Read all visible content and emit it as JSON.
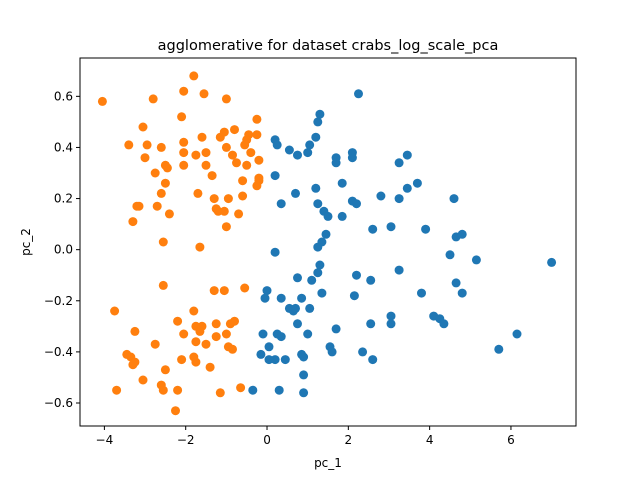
{
  "chart_data": {
    "type": "scatter",
    "title": "agglomerative for dataset crabs_log_scale_pca",
    "xlabel": "pc_1",
    "ylabel": "pc_2",
    "xlim": [
      -4.6,
      7.6
    ],
    "ylim": [
      -0.69,
      0.75
    ],
    "xticks": [
      -4,
      -2,
      0,
      2,
      4,
      6
    ],
    "yticks": [
      -0.6,
      -0.4,
      -0.2,
      0.0,
      0.2,
      0.4,
      0.6
    ],
    "ytick_labels": [
      "−0.6",
      "−0.4",
      "−0.2",
      "0.0",
      "0.2",
      "0.4",
      "0.6"
    ],
    "xtick_labels": [
      "−4",
      "−2",
      "0",
      "2",
      "4",
      "6"
    ],
    "grid": false,
    "colors": {
      "cluster_0": "#1f77b4",
      "cluster_1": "#ff7f0e"
    },
    "series": [
      {
        "color": "#1f77b4",
        "points": [
          [
            2.25,
            0.61
          ],
          [
            1.3,
            0.53
          ],
          [
            1.25,
            0.5
          ],
          [
            1.2,
            0.44
          ],
          [
            0.2,
            0.43
          ],
          [
            0.25,
            0.41
          ],
          [
            0.55,
            0.39
          ],
          [
            0.75,
            0.37
          ],
          [
            1.0,
            0.38
          ],
          [
            1.05,
            0.41
          ],
          [
            1.7,
            0.36
          ],
          [
            1.7,
            0.34
          ],
          [
            2.1,
            0.38
          ],
          [
            2.1,
            0.36
          ],
          [
            3.45,
            0.37
          ],
          [
            3.25,
            0.34
          ],
          [
            0.2,
            0.29
          ],
          [
            1.85,
            0.26
          ],
          [
            3.45,
            0.24
          ],
          [
            3.7,
            0.26
          ],
          [
            0.7,
            0.22
          ],
          [
            1.2,
            0.24
          ],
          [
            2.8,
            0.21
          ],
          [
            3.25,
            0.2
          ],
          [
            0.35,
            0.18
          ],
          [
            1.25,
            0.18
          ],
          [
            2.1,
            0.19
          ],
          [
            2.2,
            0.18
          ],
          [
            4.6,
            0.2
          ],
          [
            1.4,
            0.15
          ],
          [
            1.85,
            0.13
          ],
          [
            1.5,
            0.13
          ],
          [
            3.05,
            0.09
          ],
          [
            2.6,
            0.08
          ],
          [
            1.45,
            0.06
          ],
          [
            3.9,
            0.08
          ],
          [
            4.65,
            0.05
          ],
          [
            4.8,
            0.06
          ],
          [
            1.35,
            0.03
          ],
          [
            1.25,
            0.01
          ],
          [
            0.2,
            -0.01
          ],
          [
            4.5,
            -0.02
          ],
          [
            5.15,
            -0.04
          ],
          [
            7.0,
            -0.05
          ],
          [
            1.3,
            -0.06
          ],
          [
            1.25,
            -0.09
          ],
          [
            2.2,
            -0.1
          ],
          [
            2.55,
            -0.12
          ],
          [
            0.75,
            -0.11
          ],
          [
            1.1,
            -0.12
          ],
          [
            3.25,
            -0.08
          ],
          [
            4.65,
            -0.13
          ],
          [
            4.8,
            -0.17
          ],
          [
            0.0,
            -0.16
          ],
          [
            -0.05,
            -0.19
          ],
          [
            0.35,
            -0.19
          ],
          [
            0.85,
            -0.19
          ],
          [
            1.35,
            -0.17
          ],
          [
            2.15,
            -0.18
          ],
          [
            3.8,
            -0.17
          ],
          [
            0.55,
            -0.23
          ],
          [
            0.65,
            -0.24
          ],
          [
            0.7,
            -0.23
          ],
          [
            1.05,
            -0.23
          ],
          [
            3.05,
            -0.26
          ],
          [
            4.1,
            -0.26
          ],
          [
            4.25,
            -0.27
          ],
          [
            6.15,
            -0.33
          ],
          [
            0.75,
            -0.29
          ],
          [
            2.55,
            -0.29
          ],
          [
            1.7,
            -0.31
          ],
          [
            1.0,
            -0.33
          ],
          [
            3.05,
            -0.29
          ],
          [
            4.35,
            -0.29
          ],
          [
            0.25,
            -0.33
          ],
          [
            0.35,
            -0.34
          ],
          [
            -0.1,
            -0.33
          ],
          [
            0.05,
            -0.38
          ],
          [
            1.55,
            -0.38
          ],
          [
            1.6,
            -0.4
          ],
          [
            2.35,
            -0.4
          ],
          [
            0.85,
            -0.41
          ],
          [
            0.9,
            -0.42
          ],
          [
            0.45,
            -0.43
          ],
          [
            0.2,
            -0.43
          ],
          [
            0.05,
            -0.43
          ],
          [
            -0.15,
            -0.41
          ],
          [
            2.6,
            -0.43
          ],
          [
            5.7,
            -0.39
          ],
          [
            0.9,
            -0.49
          ],
          [
            0.3,
            -0.55
          ],
          [
            0.9,
            -0.56
          ],
          [
            -0.35,
            -0.55
          ]
        ]
      },
      {
        "color": "#ff7f0e",
        "points": [
          [
            -4.05,
            0.58
          ],
          [
            -2.8,
            0.59
          ],
          [
            -1.8,
            0.68
          ],
          [
            -2.05,
            0.62
          ],
          [
            -1.55,
            0.61
          ],
          [
            -1.0,
            0.59
          ],
          [
            -2.1,
            0.52
          ],
          [
            -3.05,
            0.48
          ],
          [
            -1.05,
            0.46
          ],
          [
            -0.8,
            0.47
          ],
          [
            -0.45,
            0.45
          ],
          [
            -0.25,
            0.45
          ],
          [
            -0.5,
            0.43
          ],
          [
            -0.25,
            0.51
          ],
          [
            -3.4,
            0.41
          ],
          [
            -2.95,
            0.41
          ],
          [
            -2.6,
            0.4
          ],
          [
            -2.05,
            0.42
          ],
          [
            -1.6,
            0.44
          ],
          [
            -1.15,
            0.44
          ],
          [
            -1.0,
            0.4
          ],
          [
            -0.55,
            0.41
          ],
          [
            -0.4,
            0.38
          ],
          [
            -3.0,
            0.36
          ],
          [
            -2.5,
            0.33
          ],
          [
            -2.45,
            0.32
          ],
          [
            -2.05,
            0.38
          ],
          [
            -1.75,
            0.37
          ],
          [
            -1.5,
            0.38
          ],
          [
            -0.85,
            0.37
          ],
          [
            -0.75,
            0.34
          ],
          [
            -0.5,
            0.33
          ],
          [
            -0.2,
            0.35
          ],
          [
            -2.05,
            0.33
          ],
          [
            -1.5,
            0.33
          ],
          [
            -2.75,
            0.3
          ],
          [
            -1.35,
            0.29
          ],
          [
            -0.6,
            0.27
          ],
          [
            -0.2,
            0.27
          ],
          [
            -0.2,
            0.28
          ],
          [
            -2.5,
            0.26
          ],
          [
            -0.25,
            0.25
          ],
          [
            -2.6,
            0.22
          ],
          [
            -1.7,
            0.22
          ],
          [
            -1.3,
            0.2
          ],
          [
            -0.95,
            0.2
          ],
          [
            -0.6,
            0.21
          ],
          [
            -3.15,
            0.17
          ],
          [
            -3.2,
            0.17
          ],
          [
            -2.7,
            0.17
          ],
          [
            -1.25,
            0.16
          ],
          [
            -1.2,
            0.15
          ],
          [
            -1.05,
            0.15
          ],
          [
            -2.4,
            0.14
          ],
          [
            -0.7,
            0.14
          ],
          [
            -3.3,
            0.11
          ],
          [
            -1.0,
            0.09
          ],
          [
            -2.55,
            0.03
          ],
          [
            -1.65,
            0.01
          ],
          [
            -2.55,
            -0.14
          ],
          [
            -3.75,
            -0.24
          ],
          [
            -1.8,
            -0.24
          ],
          [
            -1.3,
            -0.16
          ],
          [
            -1.05,
            -0.16
          ],
          [
            -0.55,
            -0.15
          ],
          [
            -2.2,
            -0.28
          ],
          [
            -1.75,
            -0.3
          ],
          [
            -1.6,
            -0.3
          ],
          [
            -1.25,
            -0.29
          ],
          [
            -0.9,
            -0.29
          ],
          [
            -0.8,
            -0.28
          ],
          [
            -1.65,
            -0.32
          ],
          [
            -2.05,
            -0.33
          ],
          [
            -1.25,
            -0.34
          ],
          [
            -1.0,
            -0.33
          ],
          [
            -3.25,
            -0.32
          ],
          [
            -2.75,
            -0.37
          ],
          [
            -1.75,
            -0.36
          ],
          [
            -1.5,
            -0.37
          ],
          [
            -0.95,
            -0.38
          ],
          [
            -0.85,
            -0.39
          ],
          [
            -3.45,
            -0.41
          ],
          [
            -3.35,
            -0.42
          ],
          [
            -3.25,
            -0.44
          ],
          [
            -3.3,
            -0.45
          ],
          [
            -2.1,
            -0.43
          ],
          [
            -1.8,
            -0.42
          ],
          [
            -1.75,
            -0.44
          ],
          [
            -1.4,
            -0.46
          ],
          [
            -2.5,
            -0.47
          ],
          [
            -3.05,
            -0.51
          ],
          [
            -2.6,
            -0.53
          ],
          [
            -2.55,
            -0.55
          ],
          [
            -2.2,
            -0.55
          ],
          [
            -3.7,
            -0.55
          ],
          [
            -0.65,
            -0.54
          ],
          [
            -1.15,
            -0.56
          ],
          [
            -2.25,
            -0.63
          ]
        ]
      }
    ]
  }
}
